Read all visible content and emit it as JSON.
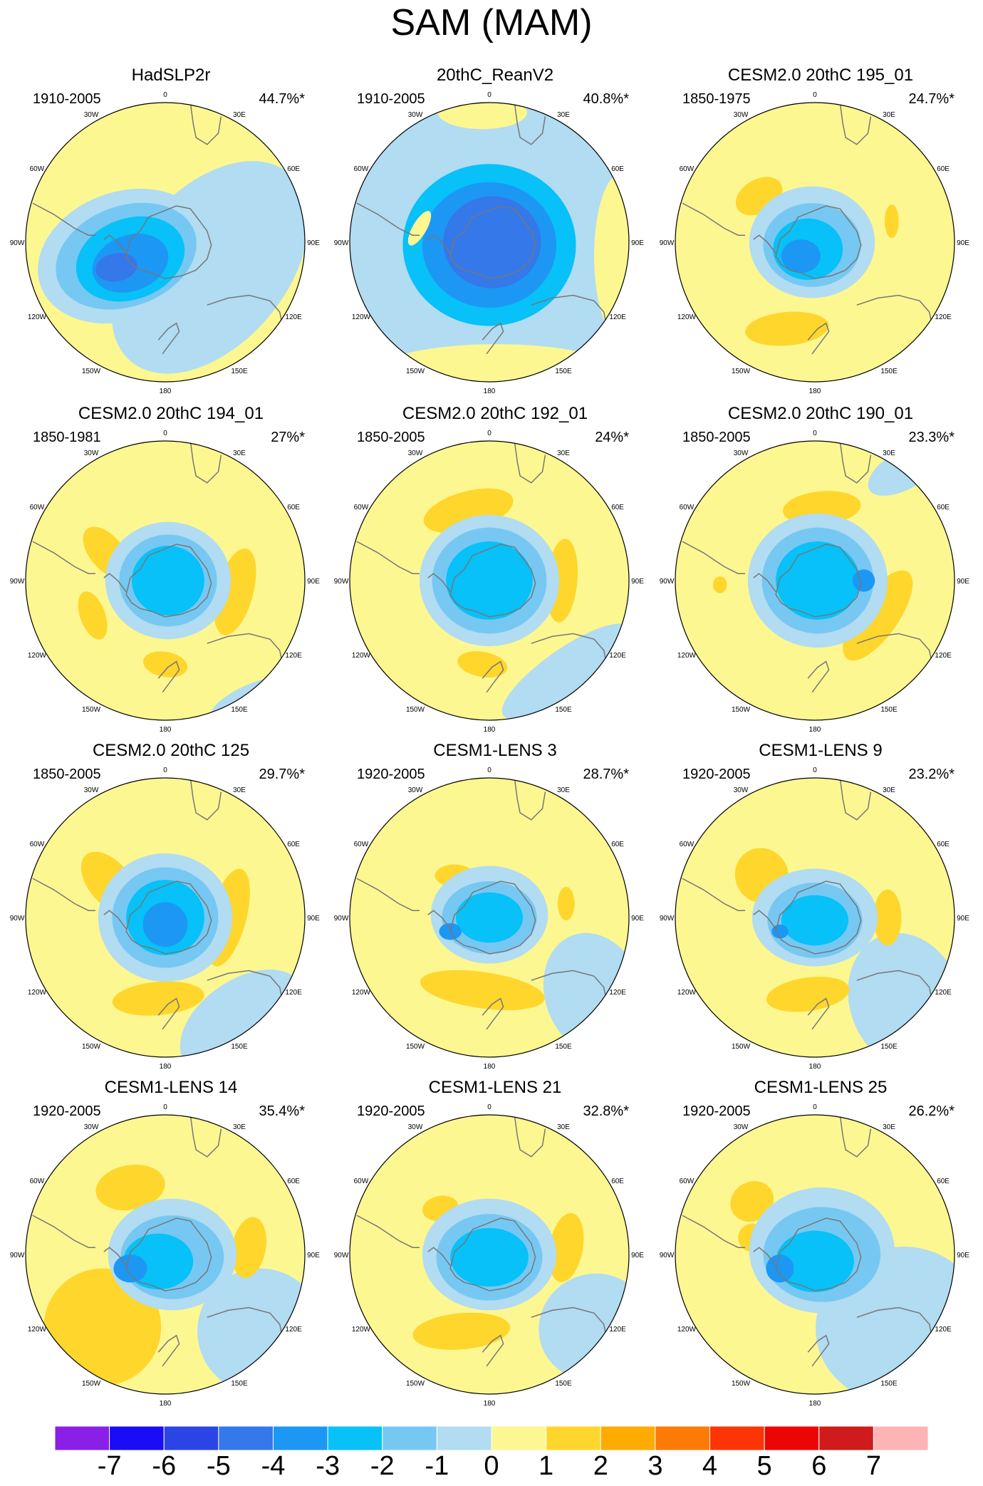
{
  "page": {
    "title": "SAM (MAM)"
  },
  "map_lon_labels": [
    "0",
    "30E",
    "60E",
    "90E",
    "120E",
    "150E",
    "180",
    "150W",
    "120W",
    "90W",
    "60W",
    "30W"
  ],
  "colors": {
    "levels": [
      "#8a1fe8",
      "#1a0cf5",
      "#2b44e6",
      "#3478ea",
      "#1d97f4",
      "#07c1f8",
      "#76c8f2",
      "#b1dcf2",
      "#fdf791",
      "#ffd62c",
      "#ffab02",
      "#fb7b06",
      "#fd3406",
      "#ec0505",
      "#cf1b1b",
      "#fcb4b4"
    ],
    "neg1": "#b1dcf2",
    "neg2": "#76c8f2",
    "neg3": "#07c1f8",
    "neg4": "#1d97f4",
    "neg5": "#3478ea",
    "pos1": "#fdf791",
    "pos2": "#ffd62c",
    "pos3": "#ffab02",
    "pos4": "#fb7b06"
  },
  "chart_data": {
    "type": "heatmap",
    "title": "SAM (MAM)",
    "projection": "south-polar-stereographic",
    "colorbar": {
      "labels": [
        "-7",
        "-6",
        "-5",
        "-4",
        "-3",
        "-2",
        "-1",
        "0",
        "1",
        "2",
        "3",
        "4",
        "5",
        "6",
        "7"
      ],
      "boundaries": [
        -7,
        -6,
        -5,
        -4,
        -3,
        -2,
        -1,
        0,
        1,
        2,
        3,
        4,
        5,
        6,
        7
      ]
    },
    "panels": [
      {
        "title": "HadSLP2r",
        "period": "1910-2005",
        "variance": "44.7%*",
        "center": [
          -0.15,
          0.12
        ],
        "core_min": -5
      },
      {
        "title": "20thC_ReanV2",
        "period": "1910-2005",
        "variance": "40.8%*",
        "center": [
          0.0,
          0.0
        ],
        "core_min": -4
      },
      {
        "title": "CESM2.0 20thC 195_01",
        "period": "1850-1975",
        "variance": "24.7%*",
        "center": [
          -0.05,
          0.05
        ],
        "core_min": -4
      },
      {
        "title": "CESM2.0 20thC 194_01",
        "period": "1850-1981",
        "variance": "27%*",
        "center": [
          0.0,
          0.0
        ],
        "core_min": -3
      },
      {
        "title": "CESM2.0 20thC 192_01",
        "period": "1850-2005",
        "variance": "24%*",
        "center": [
          0.02,
          0.0
        ],
        "core_min": -3
      },
      {
        "title": "CESM2.0 20thC 190_01",
        "period": "1850-2005",
        "variance": "23.3%*",
        "center": [
          0.02,
          0.0
        ],
        "core_min": -4
      },
      {
        "title": "CESM2.0 20thC 125",
        "period": "1850-2005",
        "variance": "29.7%*",
        "center": [
          0.0,
          0.0
        ],
        "core_min": -4
      },
      {
        "title": "CESM1-LENS 3",
        "period": "1920-2005",
        "variance": "28.7%*",
        "center": [
          0.0,
          0.0
        ],
        "core_min": -4
      },
      {
        "title": "CESM1-LENS 9",
        "period": "1920-2005",
        "variance": "23.2%*",
        "center": [
          0.0,
          0.0
        ],
        "core_min": -4
      },
      {
        "title": "CESM1-LENS 14",
        "period": "1920-2005",
        "variance": "35.4%*",
        "center": [
          0.0,
          0.0
        ],
        "core_min": -4
      },
      {
        "title": "CESM1-LENS 21",
        "period": "1920-2005",
        "variance": "32.8%*",
        "center": [
          0.0,
          0.0
        ],
        "core_min": -4
      },
      {
        "title": "CESM1-LENS 25",
        "period": "1920-2005",
        "variance": "26.2%*",
        "center": [
          0.0,
          0.0
        ],
        "core_min": -4
      }
    ]
  }
}
